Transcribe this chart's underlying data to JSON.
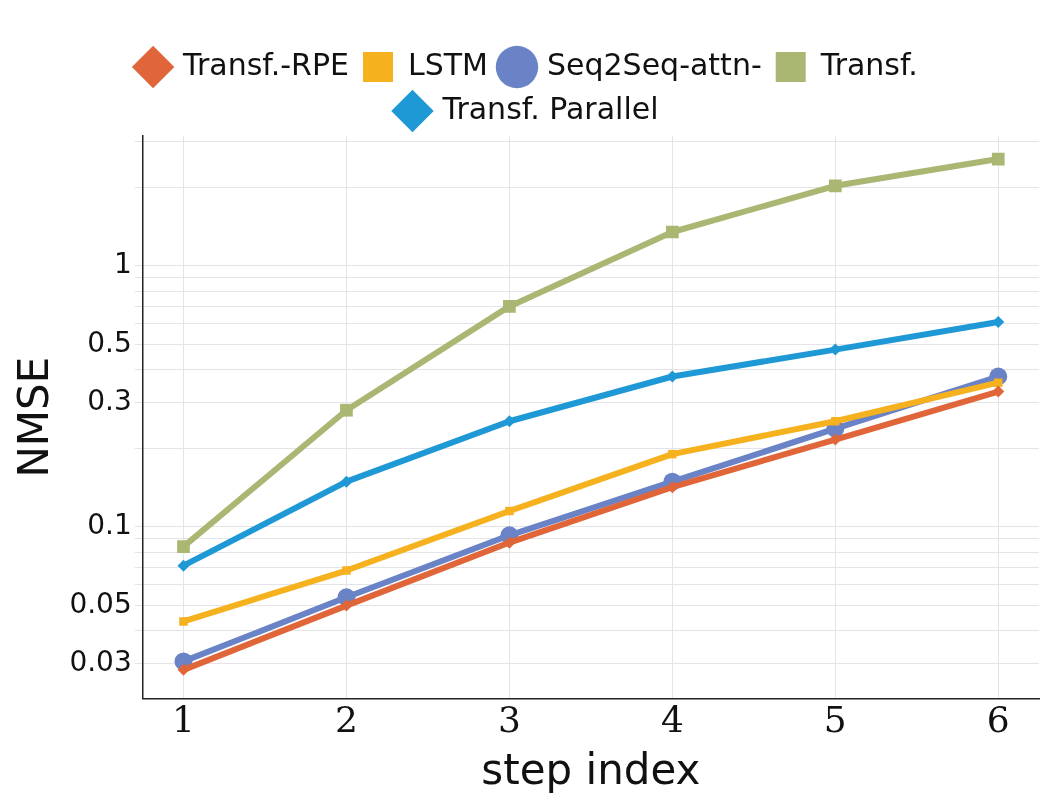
{
  "chart_data": {
    "type": "line",
    "xlabel": "step index",
    "ylabel": "NMSE",
    "x": [
      1,
      2,
      3,
      4,
      5,
      6
    ],
    "log": "y",
    "xlim": [
      0.75,
      6.25
    ],
    "ylim": [
      0.022,
      3.15
    ],
    "xticks": [
      1,
      2,
      3,
      4,
      5,
      6
    ],
    "yticks": [
      0.03,
      {
        "value": 0.04,
        "label": null
      },
      0.05,
      {
        "value": 0.06,
        "label": null
      },
      {
        "value": 0.07,
        "label": null
      },
      {
        "value": 0.08,
        "label": null
      },
      {
        "value": 0.09,
        "label": null
      },
      0.1,
      {
        "value": 0.2,
        "label": null
      },
      0.3,
      {
        "value": 0.4,
        "label": null
      },
      0.5,
      {
        "value": 0.6,
        "label": null
      },
      {
        "value": 0.7,
        "label": null
      },
      {
        "value": 0.8,
        "label": null
      },
      {
        "value": 0.9,
        "label": null
      },
      1,
      {
        "value": 2,
        "label": null
      },
      {
        "value": 3,
        "label": null
      }
    ],
    "grid": true,
    "legend": "top",
    "line_style": "solid",
    "series": [
      {
        "name": "LSTM",
        "color": "#f6b11e",
        "marker": "square",
        "values": [
          0.0434,
          0.068,
          0.115,
          0.19,
          0.254,
          0.357
        ]
      },
      {
        "name": "Seq2Seq-attn-",
        "color": "#6a83c6",
        "marker": "circle",
        "values": [
          0.0305,
          0.0537,
          0.0928,
          0.149,
          0.238,
          0.377
        ]
      },
      {
        "name": "Transf.-RPE",
        "color": "#e0663a",
        "marker": "diamond",
        "values": [
          0.0283,
          0.0499,
          0.087,
          0.142,
          0.216,
          0.33
        ]
      },
      {
        "name": "Transf.",
        "color": "#aab773",
        "marker": "square",
        "values": [
          0.084,
          0.28,
          0.7,
          1.35,
          2.03,
          2.57
        ]
      },
      {
        "name": "Transf. Parallel",
        "color": "#1f99d6",
        "marker": "diamond",
        "values": [
          0.071,
          0.149,
          0.254,
          0.377,
          0.478,
          0.61
        ]
      }
    ]
  }
}
